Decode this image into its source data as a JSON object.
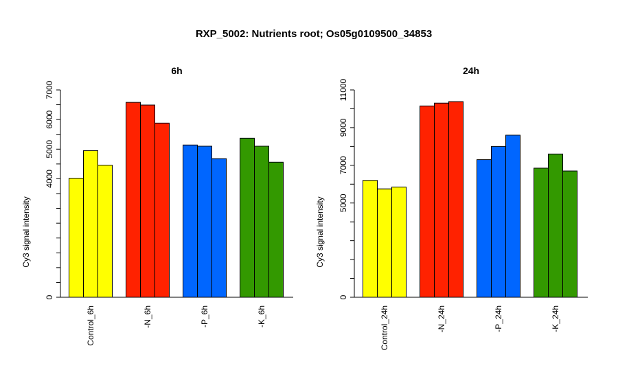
{
  "title": "RXP_5002: Nutrients root; Os05g0109500_34853",
  "colors": {
    "control": "#ffff00",
    "minus_n": "#ff2200",
    "minus_p": "#0066ff",
    "minus_k": "#339900",
    "axis": "#000000",
    "bar_border": "#000000"
  },
  "chart_data": [
    {
      "type": "bar",
      "title": "6h",
      "ylabel": "Cy3 signal intensity",
      "xlabel": "",
      "ylim": [
        0,
        7000
      ],
      "yticks": [
        0,
        4000,
        5000,
        6000,
        7000
      ],
      "grid": false,
      "legend": "none",
      "groups": [
        {
          "label": "Control_6h",
          "color_key": "control",
          "values": [
            4020,
            4950,
            4460
          ]
        },
        {
          "label": "-N_6h",
          "color_key": "minus_n",
          "values": [
            6580,
            6490,
            5880
          ]
        },
        {
          "label": "-P_6h",
          "color_key": "minus_p",
          "values": [
            5140,
            5100,
            4680
          ]
        },
        {
          "label": "-K_6h",
          "color_key": "minus_k",
          "values": [
            5370,
            5100,
            4560
          ]
        }
      ]
    },
    {
      "type": "bar",
      "title": "24h",
      "ylabel": "Cy3 signal intensity",
      "xlabel": "",
      "ylim": [
        0,
        11000
      ],
      "yticks": [
        0,
        5000,
        7000,
        9000,
        11000
      ],
      "grid": false,
      "legend": "none",
      "groups": [
        {
          "label": "Control_24h",
          "color_key": "control",
          "values": [
            6200,
            5750,
            5850
          ]
        },
        {
          "label": "-N_24h",
          "color_key": "minus_n",
          "values": [
            10150,
            10300,
            10380
          ]
        },
        {
          "label": "-P_24h",
          "color_key": "minus_p",
          "values": [
            7300,
            8000,
            8600
          ]
        },
        {
          "label": "-K_24h",
          "color_key": "minus_k",
          "values": [
            6850,
            7600,
            6700
          ]
        }
      ]
    }
  ]
}
